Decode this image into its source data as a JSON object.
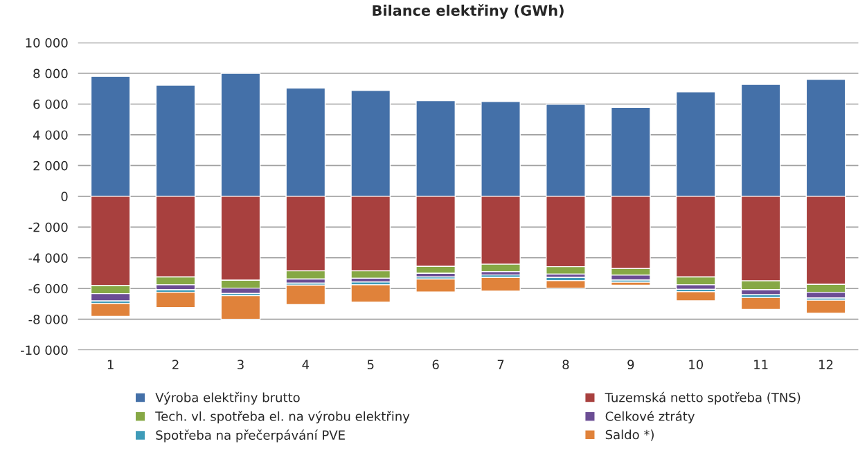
{
  "chart_data": {
    "type": "bar",
    "title": "Bilance elektřiny (GWh)",
    "stacked": true,
    "categories": [
      "1",
      "2",
      "3",
      "4",
      "5",
      "6",
      "7",
      "8",
      "9",
      "10",
      "11",
      "12"
    ],
    "series": [
      {
        "name": "Výroba elektřiny brutto",
        "color": "#4470a8",
        "values": [
          7810,
          7230,
          8000,
          7040,
          6890,
          6220,
          6170,
          5980,
          5780,
          6800,
          7280,
          7610
        ]
      },
      {
        "name": "Tuzemská netto spotřeba (TNS)",
        "color": "#a8403e",
        "values": [
          -5800,
          -5250,
          -5460,
          -4850,
          -4850,
          -4560,
          -4420,
          -4580,
          -4700,
          -5250,
          -5500,
          -5730
        ]
      },
      {
        "name": "Tech. vl. spotřeba el. na výrobu elektřiny",
        "color": "#86a845",
        "values": [
          -530,
          -510,
          -510,
          -530,
          -480,
          -450,
          -480,
          -480,
          -430,
          -510,
          -580,
          -510
        ]
      },
      {
        "name": "Celkové ztráty",
        "color": "#6b4d94",
        "values": [
          -480,
          -320,
          -350,
          -270,
          -240,
          -240,
          -220,
          -220,
          -320,
          -290,
          -320,
          -380
        ]
      },
      {
        "name": "Spotřeba na přečerpávání PVE",
        "color": "#3e9bb8",
        "values": [
          -160,
          -160,
          -140,
          -130,
          -190,
          -130,
          -160,
          -210,
          -140,
          -160,
          -190,
          -140
        ]
      },
      {
        "name": "Saldo *)",
        "color": "#e0823a",
        "values": [
          -840,
          -990,
          -1540,
          -1260,
          -1130,
          -840,
          -890,
          -490,
          -190,
          -590,
          -770,
          -850
        ]
      }
    ],
    "ylim": [
      -10000,
      10000
    ],
    "yticks": [
      {
        "value": -10000,
        "label": "-10 000"
      },
      {
        "value": -8000,
        "label": "-8 000"
      },
      {
        "value": -6000,
        "label": "-6 000"
      },
      {
        "value": -4000,
        "label": "-4 000"
      },
      {
        "value": -2000,
        "label": "-2 000"
      },
      {
        "value": 0,
        "label": "0"
      },
      {
        "value": 2000,
        "label": "2 000"
      },
      {
        "value": 4000,
        "label": "4 000"
      },
      {
        "value": 6000,
        "label": "6 000"
      },
      {
        "value": 8000,
        "label": "8 000"
      },
      {
        "value": 10000,
        "label": "10 000"
      }
    ],
    "grid": "y",
    "legend": "bottom"
  }
}
